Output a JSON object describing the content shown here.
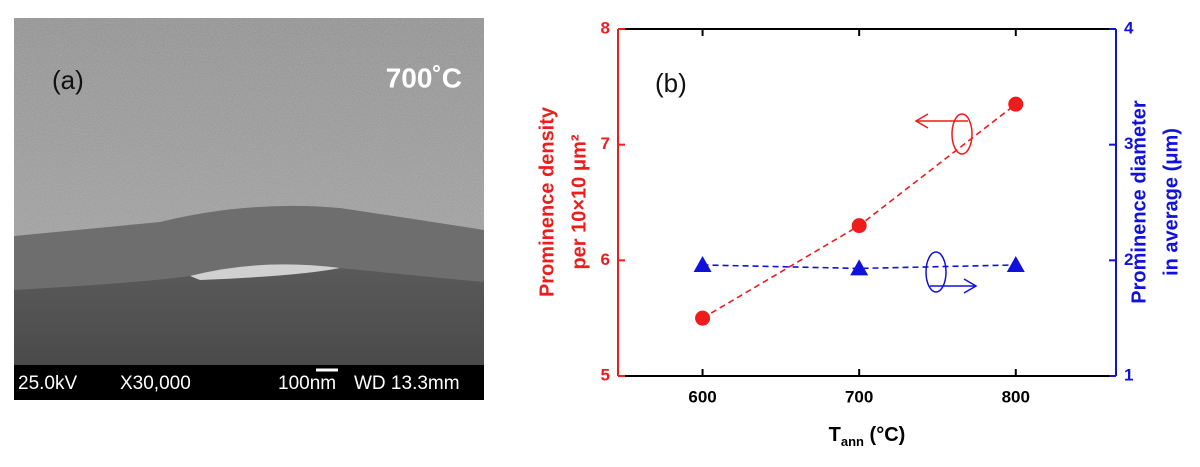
{
  "panel_a": {
    "label": "(a)",
    "temperature": "700˚C",
    "info": [
      "25.0kV",
      "X30,000",
      "100nm",
      "WD 13.3mm"
    ]
  },
  "chart_data": {
    "type": "line",
    "annotation": "(b)",
    "xlabel": [
      "T",
      "ann",
      " (°C)"
    ],
    "ylabel": [
      "Prominence density",
      "per 10×10 μm²"
    ],
    "y2label": [
      "Prominence diameter",
      "in average (μm)"
    ],
    "x": [
      600,
      700,
      800
    ],
    "xlim": [
      546,
      864
    ],
    "xticks": [
      600,
      700,
      800
    ],
    "ylim": [
      5,
      8
    ],
    "yticks": [
      5,
      6,
      7,
      8
    ],
    "y2lim": [
      1,
      4
    ],
    "y2ticks": [
      1,
      2,
      3,
      4
    ],
    "series": [
      {
        "color": "#ee1c1c",
        "values": [
          5.5,
          6.3,
          7.35
        ],
        "axis": "y",
        "marker": "circle"
      },
      {
        "color": "#1111dd",
        "values": [
          1.96,
          1.93,
          1.96
        ],
        "axis": "y2",
        "marker": "triangle"
      }
    ]
  }
}
